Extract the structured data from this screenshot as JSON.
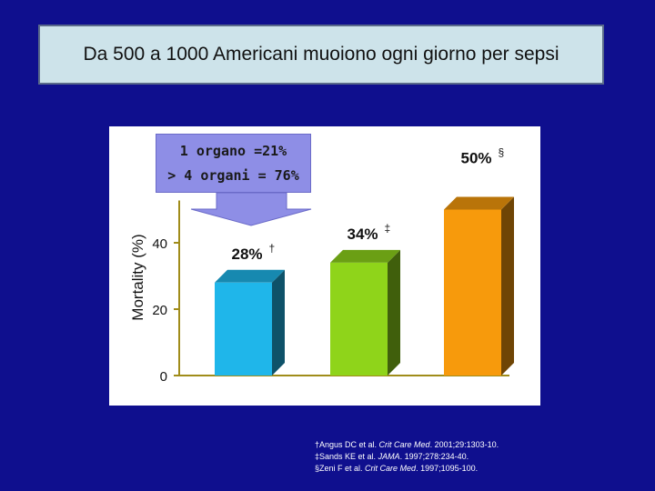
{
  "title": "Da 500 a 1000 Americani muoiono ogni giorno per sepsi",
  "callout": {
    "line1": "1 organo =21%",
    "line2": "> 4 organi = 76%"
  },
  "references": [
    {
      "mark": "†",
      "pre": "Angus DC et al. ",
      "journal": "Crit Care Med",
      "post": ". 2001;29:1303-10."
    },
    {
      "mark": "‡",
      "pre": "Sands KE et al. ",
      "journal": "JAMA",
      "post": ". 1997;278:234-40."
    },
    {
      "mark": "§",
      "pre": "Zeni F et al. ",
      "journal": "Crit Care Med",
      "post": ". 1997;1095-100."
    }
  ],
  "colors": {
    "background": "#0f0f8e",
    "bar1": "#1fb6ea",
    "bar2": "#8fd41a",
    "bar3": "#f79a0c",
    "arrow": "#8e8ee6"
  },
  "chart_data": {
    "type": "bar",
    "categories": [
      "",
      "",
      ""
    ],
    "values": [
      28,
      34,
      50
    ],
    "data_labels": [
      {
        "text": "28%",
        "mark": "†"
      },
      {
        "text": "34%",
        "mark": "‡"
      },
      {
        "text": "50%",
        "mark": "§"
      }
    ],
    "ylabel": "Mortality (%)",
    "yticks": [
      0,
      20,
      40
    ],
    "ylim": [
      0,
      50
    ],
    "grid": false,
    "style": "3d-bars"
  }
}
